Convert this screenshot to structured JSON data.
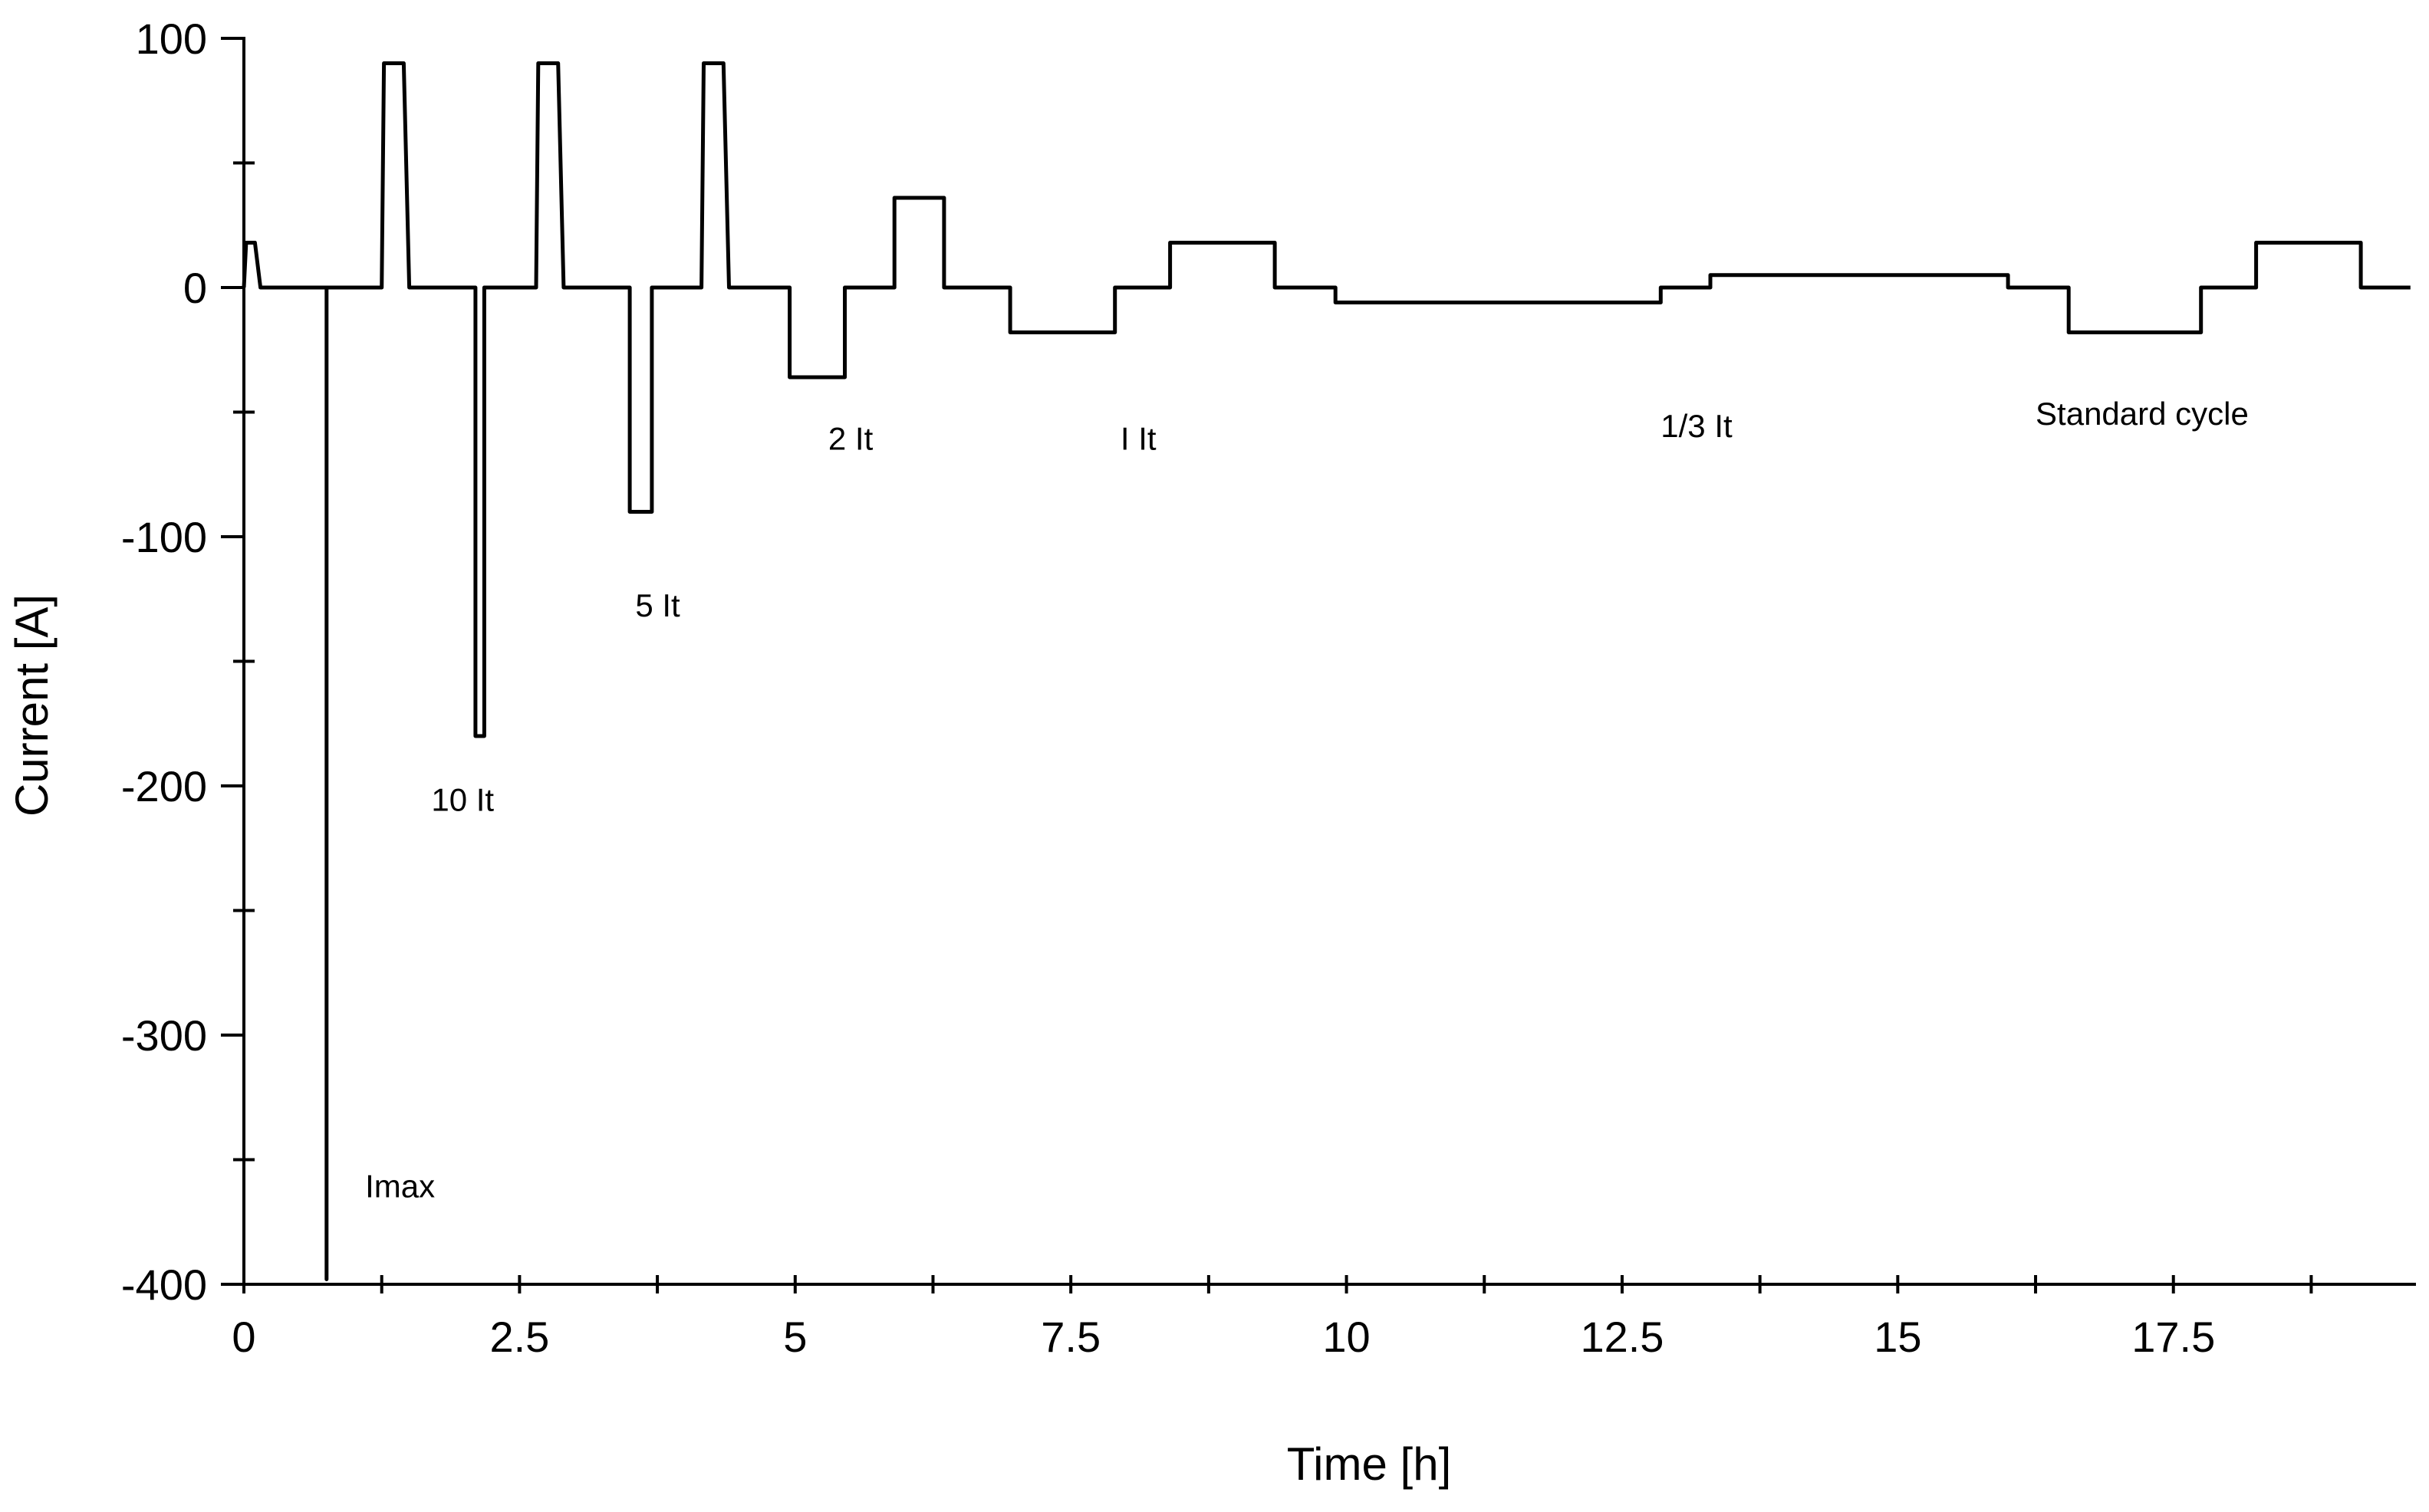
{
  "chart_data": {
    "type": "line",
    "title": "",
    "xlabel": "Time [h]",
    "ylabel": "Current [A]",
    "xlim": [
      0,
      19.7
    ],
    "ylim": [
      -400,
      100
    ],
    "grid": false,
    "legend": "none",
    "x_ticks": [
      0,
      2.5,
      5,
      7.5,
      10,
      12.5,
      15,
      17.5
    ],
    "x_tick_labels": [
      "0",
      "2.5",
      "5",
      "7.5",
      "10",
      "12.5",
      "15",
      "17.5"
    ],
    "x_minor_ticks": [
      1.25,
      3.75,
      6.25,
      8.75,
      11.25,
      13.75,
      16.25,
      18.75
    ],
    "y_ticks": [
      100,
      0,
      -100,
      -200,
      -300,
      -400
    ],
    "y_tick_labels": [
      "100",
      "0",
      "-100",
      "-200",
      "-300",
      "-400"
    ],
    "y_minor_ticks": [
      50,
      -50,
      -150,
      -250,
      -350
    ],
    "series": [
      {
        "name": "",
        "color": "#000000",
        "x": [
          0,
          0.02,
          0.1,
          0.15,
          0.75,
          0.75,
          0.75,
          1.25,
          1.27,
          1.45,
          1.5,
          2.1,
          2.1,
          2.18,
          2.18,
          2.65,
          2.67,
          2.85,
          2.9,
          3.5,
          3.5,
          3.7,
          3.7,
          4.15,
          4.17,
          4.35,
          4.4,
          4.95,
          4.95,
          5.45,
          5.45,
          5.9,
          5.9,
          6.35,
          6.35,
          6.95,
          6.95,
          7.9,
          7.9,
          8.4,
          8.4,
          9.35,
          9.35,
          9.9,
          9.9,
          12.85,
          12.85,
          13.3,
          13.3,
          16,
          16,
          16.55,
          16.55,
          17.75,
          17.75,
          18.25,
          18.25,
          19.2,
          19.2,
          19.65
        ],
        "y": [
          0,
          18,
          18,
          0,
          0,
          -398,
          0,
          0,
          90,
          90,
          0,
          0,
          -180,
          -180,
          0,
          0,
          90,
          90,
          0,
          0,
          -90,
          -90,
          0,
          0,
          90,
          90,
          0,
          0,
          -36,
          -36,
          0,
          0,
          36,
          36,
          0,
          0,
          -18,
          -18,
          0,
          0,
          18,
          18,
          0,
          0,
          -6,
          -6,
          0,
          0,
          5,
          5,
          0,
          0,
          -18,
          -18,
          0,
          0,
          18,
          18,
          0,
          0
        ]
      }
    ],
    "annotations": [
      {
        "text": "Imax",
        "x": 1.1,
        "y": -365
      },
      {
        "text": "10 It",
        "x": 1.7,
        "y": -210
      },
      {
        "text": "5 It",
        "x": 3.55,
        "y": -132
      },
      {
        "text": "2 It",
        "x": 5.3,
        "y": -65
      },
      {
        "text": "I It",
        "x": 7.95,
        "y": -65
      },
      {
        "text": "1/3 It",
        "x": 12.85,
        "y": -60
      },
      {
        "text": "Standard cycle",
        "x": 16.25,
        "y": -55
      }
    ]
  }
}
